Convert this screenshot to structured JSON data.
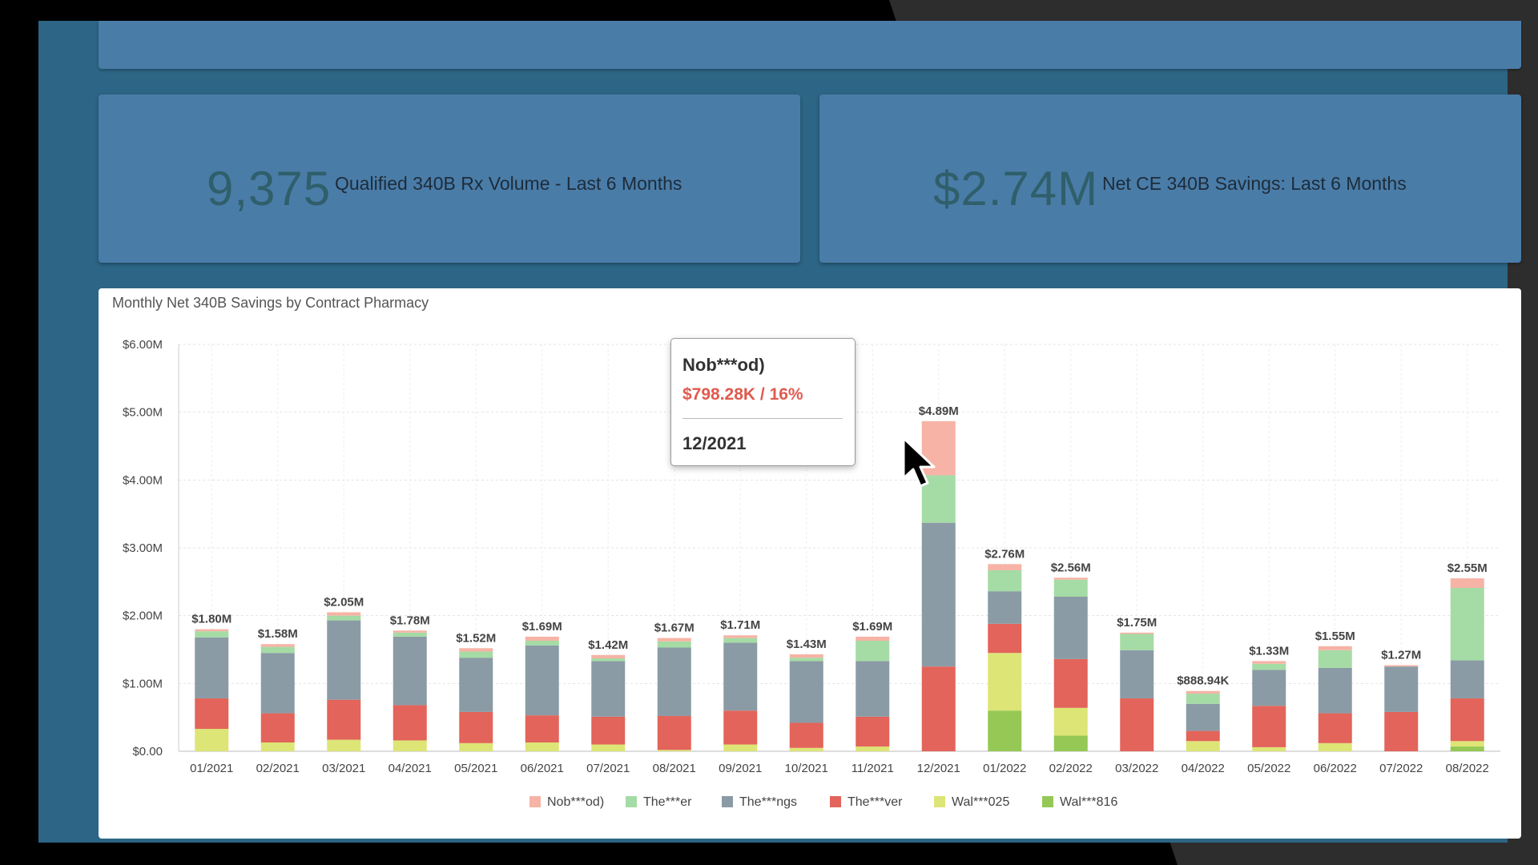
{
  "kpis": [
    {
      "value": "9,375",
      "label": "Qualified 340B Rx Volume - Last 6 Months"
    },
    {
      "value": "$2.74M",
      "label": "Net CE 340B Savings: Last 6 Months"
    }
  ],
  "chart_data": {
    "type": "bar",
    "stacked": true,
    "title": "Monthly Net 340B Savings by Contract Pharmacy",
    "ylim": [
      0,
      6000000
    ],
    "y_ticks": [
      "$0.00",
      "$1.00M",
      "$2.00M",
      "$3.00M",
      "$4.00M",
      "$5.00M",
      "$6.00M"
    ],
    "grid": true,
    "legend_position": "bottom-center",
    "categories": [
      "01/2021",
      "02/2021",
      "03/2021",
      "04/2021",
      "05/2021",
      "06/2021",
      "07/2021",
      "08/2021",
      "09/2021",
      "10/2021",
      "11/2021",
      "12/2021",
      "01/2022",
      "02/2022",
      "03/2022",
      "04/2022",
      "05/2022",
      "06/2022",
      "07/2022",
      "08/2022"
    ],
    "totals": [
      "$1.80M",
      "$1.58M",
      "$2.05M",
      "$1.78M",
      "$1.52M",
      "$1.69M",
      "$1.42M",
      "$1.67M",
      "$1.71M",
      "$1.43M",
      "$1.69M",
      "$4.89M",
      "$2.76M",
      "$2.56M",
      "$1.75M",
      "$888.94K",
      "$1.33M",
      "$1.55M",
      "$1.27M",
      "$2.55M"
    ],
    "series": [
      {
        "name": "Wal***816",
        "color": "#95c854",
        "values": [
          0,
          0,
          0,
          0,
          0,
          0,
          0,
          0,
          0,
          0,
          0,
          0,
          600000,
          230000,
          0,
          0,
          0,
          0,
          0,
          70000
        ]
      },
      {
        "name": "Wal***025",
        "color": "#dde576",
        "values": [
          330000,
          130000,
          170000,
          160000,
          120000,
          130000,
          100000,
          20000,
          100000,
          50000,
          70000,
          0,
          850000,
          410000,
          0,
          150000,
          60000,
          120000,
          0,
          80000
        ]
      },
      {
        "name": "The***ver",
        "color": "#e3645a",
        "values": [
          450000,
          430000,
          590000,
          520000,
          460000,
          400000,
          410000,
          500000,
          500000,
          370000,
          440000,
          1250000,
          430000,
          720000,
          780000,
          150000,
          610000,
          440000,
          580000,
          630000
        ]
      },
      {
        "name": "The***ngs",
        "color": "#8a9ba5",
        "values": [
          900000,
          890000,
          1170000,
          1010000,
          800000,
          1030000,
          820000,
          1010000,
          1000000,
          910000,
          820000,
          2120000,
          480000,
          920000,
          710000,
          400000,
          530000,
          670000,
          670000,
          560000
        ]
      },
      {
        "name": "The***er",
        "color": "#a5dba4",
        "values": [
          90000,
          90000,
          70000,
          60000,
          90000,
          70000,
          40000,
          90000,
          70000,
          50000,
          300000,
          700000,
          310000,
          250000,
          240000,
          150000,
          90000,
          260000,
          0,
          1070000
        ]
      },
      {
        "name": "Nob***od)",
        "color": "#f6b3a6",
        "values": [
          30000,
          40000,
          50000,
          30000,
          50000,
          60000,
          50000,
          50000,
          40000,
          50000,
          60000,
          798280,
          90000,
          30000,
          20000,
          38940,
          40000,
          60000,
          20000,
          140000
        ]
      }
    ],
    "legend_order": [
      "Nob***od)",
      "The***er",
      "The***ngs",
      "The***ver",
      "Wal***025",
      "Wal***816"
    ]
  },
  "tooltip": {
    "series": "Nob***od)",
    "value": "$798.28K / 16%",
    "category": "12/2021",
    "value_color": "#e05a4e"
  }
}
